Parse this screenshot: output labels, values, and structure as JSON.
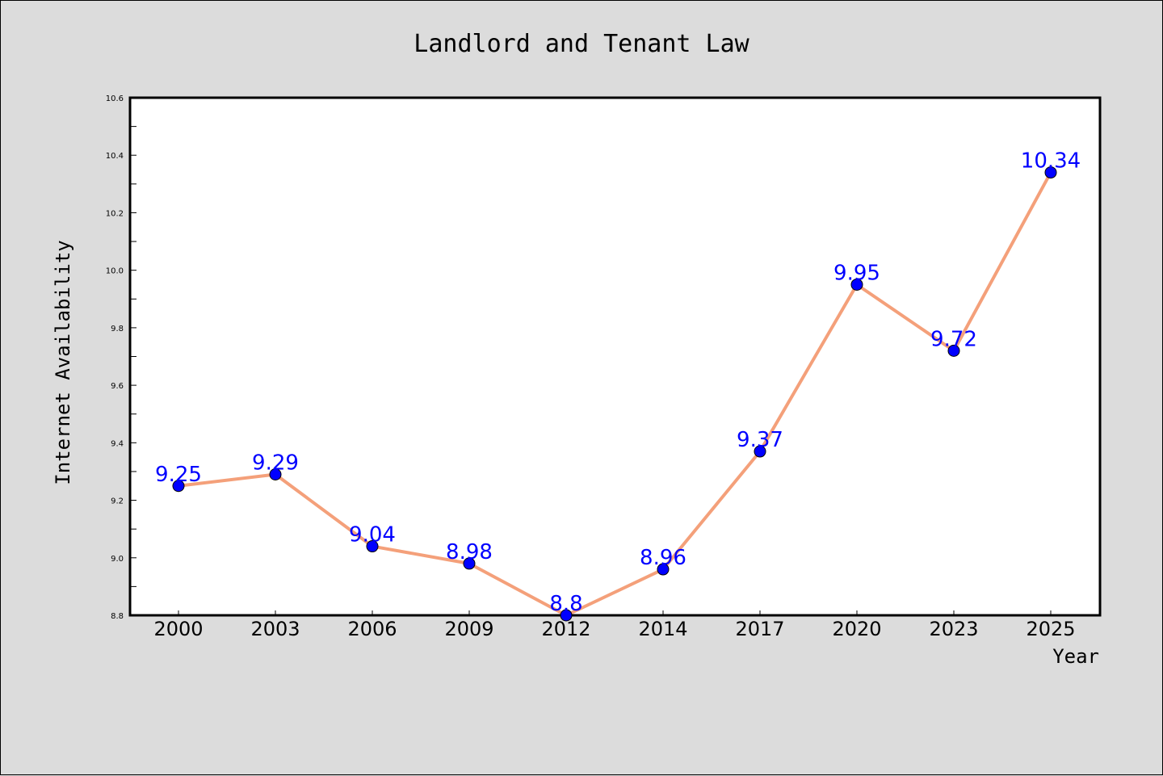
{
  "chart_data": {
    "type": "line",
    "title": "Landlord and Tenant Law",
    "xlabel": "Year",
    "ylabel": "Internet Availability",
    "categories": [
      "2000",
      "2003",
      "2006",
      "2009",
      "2012",
      "2014",
      "2017",
      "2020",
      "2023",
      "2025"
    ],
    "series": [
      {
        "values": [
          9.25,
          9.29,
          9.04,
          8.98,
          8.8,
          8.96,
          9.37,
          9.95,
          9.72,
          10.34
        ]
      }
    ],
    "data_labels": [
      "9.25",
      "9.29",
      "9.04",
      "8.98",
      "8.8",
      "8.96",
      "9.37",
      "9.95",
      "9.72",
      "10.34"
    ],
    "ylim": [
      8.8,
      10.6
    ],
    "yticks": [
      "8.8",
      "9.0",
      "9.2",
      "9.4",
      "9.6",
      "9.8",
      "10.0",
      "10.2",
      "10.4",
      "10.6"
    ],
    "grid": false,
    "colors": {
      "line": "#f4a07a",
      "marker": "#0000ff",
      "data_label": "#0000ff"
    }
  }
}
